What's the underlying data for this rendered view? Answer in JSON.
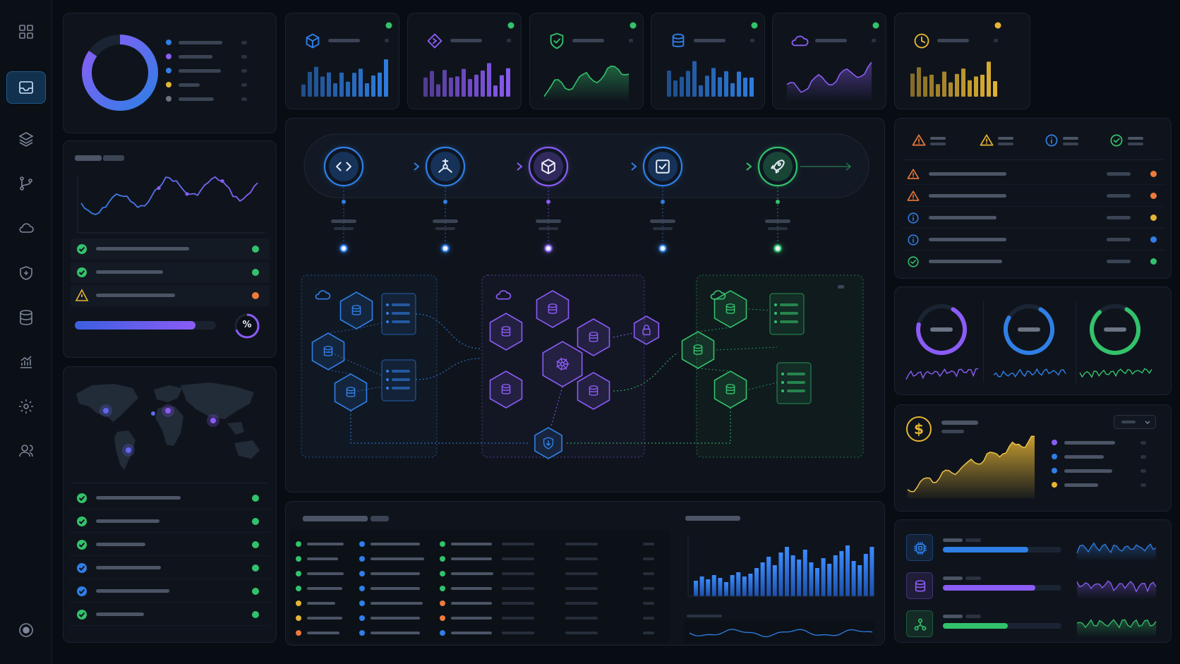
{
  "colors": {
    "blue": "#2f7fe6",
    "purple": "#8b5cf6",
    "green": "#33c26b",
    "yellow": "#e5b533",
    "orange": "#ef7a3a",
    "background": "#080c13",
    "panel": "#0f141c"
  },
  "sidebar": {
    "items": [
      {
        "icon": "grid-icon",
        "active": false
      },
      {
        "icon": "inbox-icon",
        "active": true
      },
      {
        "icon": "layers-icon",
        "active": false
      },
      {
        "icon": "git-branch-icon",
        "active": false
      },
      {
        "icon": "cloud-icon",
        "active": false
      },
      {
        "icon": "shield-icon",
        "active": false
      },
      {
        "icon": "database-icon",
        "active": false
      },
      {
        "icon": "analytics-icon",
        "active": false
      },
      {
        "icon": "settings-icon",
        "active": false
      },
      {
        "icon": "users-icon",
        "active": false
      }
    ],
    "footer_icon": "record-icon"
  },
  "donut": {
    "legend_colors": [
      "#2f7fe6",
      "#8b5cf6",
      "#2f7fe6",
      "#e5b533",
      "#6b7280"
    ]
  },
  "kpi_cards": [
    {
      "icon": "cube-icon",
      "color": "#2f7fe6",
      "chart": "bar",
      "status": "#33c26b"
    },
    {
      "icon": "api-icon",
      "color": "#8b5cf6",
      "chart": "bar",
      "status": "#33c26b"
    },
    {
      "icon": "shield-check-icon",
      "color": "#33c26b",
      "chart": "area",
      "status": "#33c26b"
    },
    {
      "icon": "database-icon",
      "color": "#2f7fe6",
      "chart": "bar",
      "status": "#33c26b"
    },
    {
      "icon": "cloud-icon",
      "color": "#8b5cf6",
      "chart": "area",
      "status": "#33c26b"
    },
    {
      "icon": "clock-icon",
      "color": "#e5b533",
      "chart": "bar",
      "status": "#e5b533"
    }
  ],
  "pipeline": {
    "stages": [
      {
        "icon": "code-icon",
        "color": "#2f7fe6"
      },
      {
        "icon": "build-icon",
        "color": "#2f7fe6"
      },
      {
        "icon": "package-icon",
        "color": "#8b5cf6"
      },
      {
        "icon": "test-check-icon",
        "color": "#2f7fe6"
      },
      {
        "icon": "rocket-icon",
        "color": "#33c26b"
      }
    ],
    "clusters": [
      {
        "icon": "cloud-icon",
        "color": "#2f7fe6"
      },
      {
        "icon": "cloud-icon",
        "color": "#8b5cf6"
      },
      {
        "icon": "cloud-icon",
        "color": "#33c26b"
      }
    ],
    "hub_icon": "kubernetes-icon",
    "lock_icon": "lock-icon",
    "gateway_icon": "shield-icon"
  },
  "checklist_top": [
    {
      "icon": "check-icon",
      "status": "#33c26b"
    },
    {
      "icon": "check-icon",
      "status": "#33c26b"
    },
    {
      "icon": "warning-icon",
      "status": "#ef7a3a"
    }
  ],
  "progress": {
    "value": 0.9,
    "badge": "%"
  },
  "map": {
    "icon": "world-map"
  },
  "checklist_bottom": [
    {
      "icon": "check-icon",
      "color": "#33c26b"
    },
    {
      "icon": "check-icon",
      "color": "#33c26b"
    },
    {
      "icon": "check-icon",
      "color": "#33c26b"
    },
    {
      "icon": "check-icon",
      "color": "#2f7fe6"
    },
    {
      "icon": "check-icon",
      "color": "#2f7fe6"
    },
    {
      "icon": "check-icon",
      "color": "#33c26b"
    }
  ],
  "alerts": {
    "summary_icons": [
      "warning-icon",
      "warning-icon",
      "info-icon",
      "check-icon"
    ],
    "rows": [
      {
        "icon": "warning-icon",
        "status": "#ef7a3a"
      },
      {
        "icon": "warning-icon",
        "status": "#ef7a3a"
      },
      {
        "icon": "info-icon",
        "status": "#e5b533"
      },
      {
        "icon": "info-icon",
        "status": "#2f7fe6"
      },
      {
        "icon": "check-icon",
        "status": "#33c26b"
      }
    ]
  },
  "gauges": [
    {
      "color": "#8b5cf6",
      "value": 0.7
    },
    {
      "color": "#2f7fe6",
      "value": 0.75
    },
    {
      "color": "#33c26b",
      "value": 0.8
    }
  ],
  "cost": {
    "icon": "dollar-icon",
    "legend_colors": [
      "#8b5cf6",
      "#2f7fe6",
      "#2f7fe6",
      "#e5b533"
    ]
  },
  "resources": [
    {
      "icon": "cpu-icon",
      "color": "#2f7fe6",
      "value": 0.72
    },
    {
      "icon": "database-icon",
      "color": "#8b5cf6",
      "value": 0.78
    },
    {
      "icon": "network-icon",
      "color": "#33c26b",
      "value": 0.55
    }
  ],
  "table": {
    "dot_colors": [
      [
        "#33c26b",
        "#2f7fe6",
        "#33c26b"
      ],
      [
        "#33c26b",
        "#2f7fe6",
        "#33c26b"
      ],
      [
        "#33c26b",
        "#2f7fe6",
        "#33c26b"
      ],
      [
        "#33c26b",
        "#2f7fe6",
        "#33c26b"
      ],
      [
        "#e5b533",
        "#2f7fe6",
        "#ef7a3a"
      ],
      [
        "#e5b533",
        "#2f7fe6",
        "#ef7a3a"
      ],
      [
        "#ef7a3a",
        "#2f7fe6",
        "#2f7fe6"
      ]
    ]
  }
}
